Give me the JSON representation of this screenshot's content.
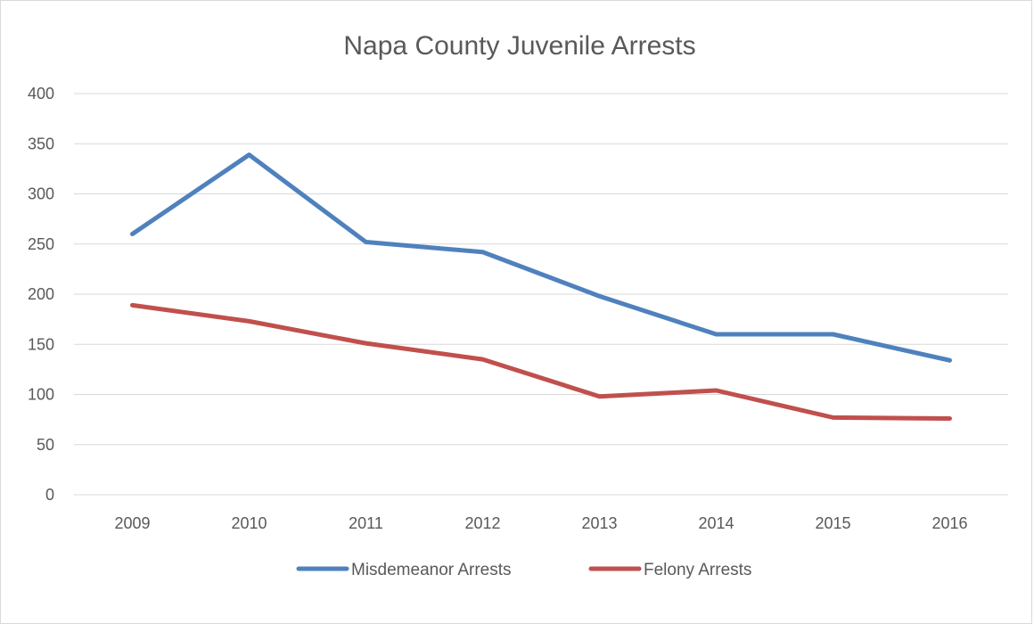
{
  "chart_data": {
    "type": "line",
    "title": "Napa County Juvenile Arrests",
    "xlabel": "",
    "ylabel": "",
    "categories": [
      "2009",
      "2010",
      "2011",
      "2012",
      "2013",
      "2014",
      "2015",
      "2016"
    ],
    "ylim": [
      0,
      400
    ],
    "yticks": [
      0,
      50,
      100,
      150,
      200,
      250,
      300,
      350,
      400
    ],
    "grid": true,
    "legend_position": "bottom",
    "series": [
      {
        "name": "Misdemeanor Arrests",
        "color": "#4f81bd",
        "values": [
          260,
          339,
          252,
          242,
          198,
          160,
          160,
          134
        ]
      },
      {
        "name": "Felony Arrests",
        "color": "#c0504d",
        "values": [
          189,
          173,
          151,
          135,
          98,
          104,
          77,
          76
        ]
      }
    ]
  }
}
